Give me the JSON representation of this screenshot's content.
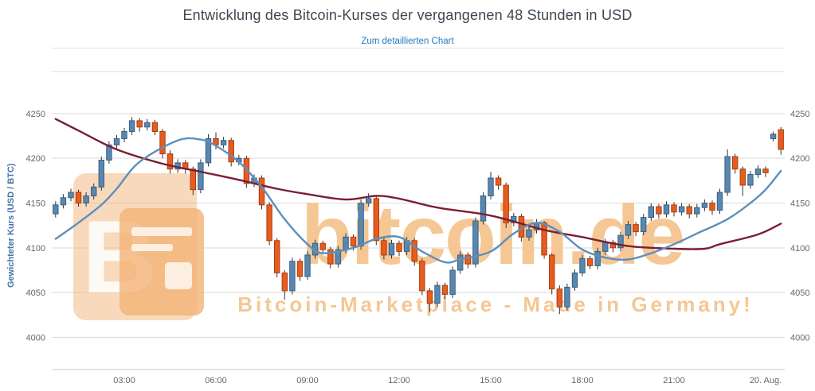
{
  "page": {
    "title": "Entwicklung des Bitcoin-Kurses der vergangenen 48 Stunden in USD",
    "link_label": "Zum detaillierten Chart"
  },
  "chart_data": {
    "type": "candlestick",
    "title": "Entwicklung des Bitcoin-Kurses der vergangenen 48 Stunden in USD",
    "xlabel": "",
    "ylabel": "Gewichteter Kurs (USD / BTC)",
    "ylim": [
      3964,
      4297
    ],
    "yticks": [
      4000,
      4050,
      4100,
      4150,
      4200,
      4250
    ],
    "grid": true,
    "legend_position": "none",
    "x_axis": {
      "tick_indices": [
        9,
        21,
        33,
        45,
        57,
        69,
        81,
        93
      ],
      "tick_labels": [
        "03:00",
        "06:00",
        "09:00",
        "12:00",
        "15:00",
        "18:00",
        "21:00",
        "20. Aug."
      ]
    },
    "candles_ohlc": [
      [
        4138,
        4152,
        4134,
        4148
      ],
      [
        4148,
        4160,
        4144,
        4156
      ],
      [
        4156,
        4166,
        4152,
        4162
      ],
      [
        4162,
        4165,
        4146,
        4150
      ],
      [
        4150,
        4162,
        4146,
        4158
      ],
      [
        4158,
        4172,
        4154,
        4168
      ],
      [
        4168,
        4202,
        4164,
        4198
      ],
      [
        4198,
        4219,
        4194,
        4215
      ],
      [
        4215,
        4226,
        4211,
        4222
      ],
      [
        4222,
        4234,
        4218,
        4230
      ],
      [
        4230,
        4246,
        4226,
        4242
      ],
      [
        4242,
        4245,
        4230,
        4235
      ],
      [
        4235,
        4244,
        4231,
        4240
      ],
      [
        4240,
        4243,
        4226,
        4230
      ],
      [
        4230,
        4233,
        4200,
        4205
      ],
      [
        4205,
        4209,
        4183,
        4188
      ],
      [
        4188,
        4199,
        4184,
        4195
      ],
      [
        4195,
        4198,
        4183,
        4188
      ],
      [
        4188,
        4191,
        4159,
        4165
      ],
      [
        4165,
        4199,
        4161,
        4195
      ],
      [
        4195,
        4227,
        4191,
        4222
      ],
      [
        4222,
        4229,
        4210,
        4215
      ],
      [
        4215,
        4224,
        4211,
        4220
      ],
      [
        4220,
        4223,
        4191,
        4196
      ],
      [
        4196,
        4204,
        4192,
        4200
      ],
      [
        4200,
        4203,
        4167,
        4172
      ],
      [
        4172,
        4182,
        4168,
        4178
      ],
      [
        4178,
        4181,
        4143,
        4148
      ],
      [
        4148,
        4151,
        4103,
        4108
      ],
      [
        4108,
        4111,
        4067,
        4072
      ],
      [
        4072,
        4075,
        4042,
        4052
      ],
      [
        4052,
        4089,
        4048,
        4085
      ],
      [
        4085,
        4088,
        4063,
        4068
      ],
      [
        4068,
        4096,
        4064,
        4092
      ],
      [
        4092,
        4109,
        4088,
        4105
      ],
      [
        4105,
        4108,
        4093,
        4098
      ],
      [
        4098,
        4101,
        4077,
        4082
      ],
      [
        4082,
        4102,
        4078,
        4098
      ],
      [
        4098,
        4116,
        4094,
        4112
      ],
      [
        4112,
        4115,
        4097,
        4102
      ],
      [
        4102,
        4154,
        4098,
        4150
      ],
      [
        4150,
        4161,
        4146,
        4155
      ],
      [
        4155,
        4158,
        4103,
        4108
      ],
      [
        4108,
        4111,
        4087,
        4092
      ],
      [
        4092,
        4109,
        4088,
        4105
      ],
      [
        4105,
        4108,
        4091,
        4096
      ],
      [
        4096,
        4112,
        4092,
        4108
      ],
      [
        4108,
        4111,
        4080,
        4085
      ],
      [
        4085,
        4088,
        4047,
        4052
      ],
      [
        4052,
        4055,
        4028,
        4038
      ],
      [
        4038,
        4062,
        4034,
        4058
      ],
      [
        4058,
        4061,
        4043,
        4048
      ],
      [
        4048,
        4079,
        4044,
        4075
      ],
      [
        4075,
        4096,
        4071,
        4092
      ],
      [
        4092,
        4095,
        4077,
        4082
      ],
      [
        4082,
        4134,
        4078,
        4130
      ],
      [
        4130,
        4162,
        4126,
        4158
      ],
      [
        4158,
        4185,
        4154,
        4178
      ],
      [
        4178,
        4181,
        4165,
        4170
      ],
      [
        4170,
        4173,
        4122,
        4128
      ],
      [
        4128,
        4139,
        4124,
        4135
      ],
      [
        4135,
        4138,
        4107,
        4112
      ],
      [
        4112,
        4124,
        4108,
        4120
      ],
      [
        4120,
        4132,
        4116,
        4128
      ],
      [
        4128,
        4130,
        4088,
        4092
      ],
      [
        4092,
        4094,
        4048,
        4054
      ],
      [
        4054,
        4058,
        4026,
        4034
      ],
      [
        4034,
        4060,
        4030,
        4056
      ],
      [
        4056,
        4076,
        4052,
        4072
      ],
      [
        4072,
        4092,
        4068,
        4088
      ],
      [
        4088,
        4091,
        4076,
        4080
      ],
      [
        4080,
        4100,
        4076,
        4096
      ],
      [
        4096,
        4110,
        4092,
        4106
      ],
      [
        4106,
        4109,
        4095,
        4100
      ],
      [
        4100,
        4118,
        4096,
        4114
      ],
      [
        4114,
        4130,
        4110,
        4126
      ],
      [
        4126,
        4129,
        4113,
        4118
      ],
      [
        4118,
        4138,
        4114,
        4134
      ],
      [
        4134,
        4150,
        4130,
        4146
      ],
      [
        4146,
        4149,
        4133,
        4138
      ],
      [
        4138,
        4152,
        4134,
        4148
      ],
      [
        4148,
        4151,
        4135,
        4140
      ],
      [
        4140,
        4150,
        4136,
        4146
      ],
      [
        4146,
        4149,
        4133,
        4138
      ],
      [
        4138,
        4149,
        4134,
        4145
      ],
      [
        4145,
        4154,
        4141,
        4150
      ],
      [
        4150,
        4153,
        4137,
        4142
      ],
      [
        4142,
        4166,
        4138,
        4162
      ],
      [
        4162,
        4210,
        4158,
        4202
      ],
      [
        4202,
        4205,
        4183,
        4188
      ],
      [
        4188,
        4191,
        4158,
        4170
      ],
      [
        4170,
        4186,
        4166,
        4182
      ],
      [
        4182,
        4192,
        4178,
        4188
      ],
      [
        4188,
        4191,
        4179,
        4184
      ],
      [
        4222,
        4230,
        4219,
        4227
      ],
      [
        4232,
        4235,
        4204,
        4210
      ]
    ],
    "series": [
      {
        "name": "trend-dark-red",
        "type": "line",
        "color": "#7a1f33",
        "i": [
          0,
          3,
          8,
          14,
          19,
          24,
          29,
          33,
          38,
          42,
          45,
          50,
          57,
          64,
          69,
          75,
          81,
          85,
          87,
          92,
          95
        ],
        "v": [
          4244,
          4231,
          4210,
          4194,
          4185,
          4176,
          4166,
          4160,
          4154,
          4158,
          4155,
          4145,
          4136,
          4120,
          4112,
          4102,
          4099,
          4099,
          4104,
          4115,
          4127
        ]
      },
      {
        "name": "trend-blue",
        "type": "line",
        "color": "#5d8fbd",
        "i": [
          0,
          3,
          6,
          8,
          11,
          16,
          19,
          21,
          24,
          27,
          30,
          33,
          35,
          39,
          42,
          45,
          48,
          51,
          53,
          57,
          60,
          63,
          66,
          69,
          72,
          75,
          78,
          81,
          84,
          88,
          91,
          93,
          95
        ],
        "v": [
          4110,
          4128,
          4148,
          4166,
          4196,
          4220,
          4221,
          4214,
          4196,
          4168,
          4132,
          4104,
          4094,
          4100,
          4110,
          4112,
          4096,
          4084,
          4087,
          4096,
          4116,
          4128,
          4118,
          4098,
          4089,
          4087,
          4094,
          4104,
          4116,
          4132,
          4150,
          4165,
          4186
        ]
      }
    ],
    "watermark": {
      "brand": "bitcoin.de",
      "tagline": "Bitcoin-Marketplace - Made in Germany!"
    },
    "colors": {
      "up": "#5b87ad",
      "up_border": "#35608a",
      "down": "#e95c1e",
      "down_border": "#a63f10",
      "wick": "#333333",
      "grid": "#d9d9d9",
      "axis": "#c8c8c8",
      "tick_text": "#666666",
      "title_text": "#3d4752",
      "link_text": "#2779bd",
      "ylabel_text": "#4572a7",
      "watermark_text": "#f4c795",
      "watermark_logo": "#f2b377"
    }
  }
}
